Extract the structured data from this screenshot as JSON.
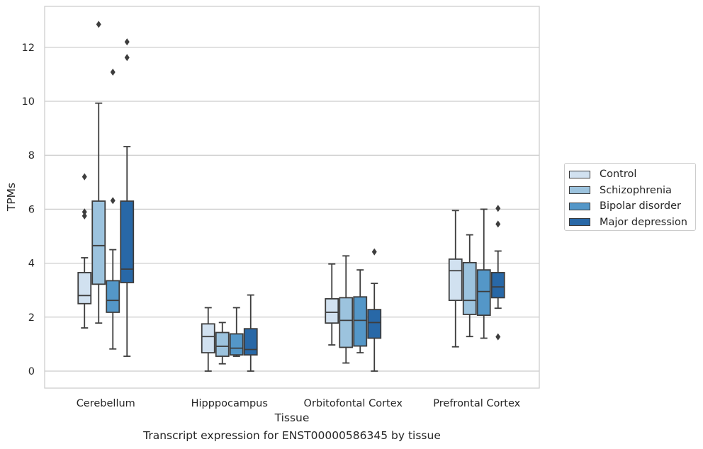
{
  "chart_data": {
    "type": "boxplot",
    "xlabel": "Tissue",
    "ylabel": "TPMs",
    "caption": "Transcript expression for ENST00000586345 by tissue",
    "ylim": [
      -0.6,
      13.5
    ],
    "yticks": [
      "0",
      "2",
      "4",
      "6",
      "8",
      "10",
      "12"
    ],
    "grid": "horizontal",
    "legend_position": "right",
    "categories": [
      "Cerebellum",
      "Hipppocampus",
      "Orbitofontal Cortex",
      "Prefrontal Cortex"
    ],
    "series": [
      {
        "name": "Control",
        "color": "#d1e1f0",
        "boxes": [
          {
            "whislo": 1.6,
            "q1": 2.5,
            "med": 2.8,
            "q3": 3.65,
            "whishi": 4.2,
            "fliers": [
              5.75,
              5.9,
              7.2
            ]
          },
          {
            "whislo": 0.0,
            "q1": 0.68,
            "med": 1.28,
            "q3": 1.75,
            "whishi": 2.35,
            "fliers": []
          },
          {
            "whislo": 0.97,
            "q1": 1.78,
            "med": 2.18,
            "q3": 2.68,
            "whishi": 3.97,
            "fliers": []
          },
          {
            "whislo": 0.9,
            "q1": 2.62,
            "med": 3.72,
            "q3": 4.15,
            "whishi": 5.95,
            "fliers": []
          }
        ]
      },
      {
        "name": "Schizophrenia",
        "color": "#9cc3de",
        "boxes": [
          {
            "whislo": 1.78,
            "q1": 3.22,
            "med": 4.65,
            "q3": 6.3,
            "whishi": 9.93,
            "fliers": [
              12.85
            ]
          },
          {
            "whislo": 0.27,
            "q1": 0.55,
            "med": 0.92,
            "q3": 1.43,
            "whishi": 1.8,
            "fliers": []
          },
          {
            "whislo": 0.3,
            "q1": 0.88,
            "med": 1.88,
            "q3": 2.72,
            "whishi": 4.27,
            "fliers": []
          },
          {
            "whislo": 1.28,
            "q1": 2.1,
            "med": 2.62,
            "q3": 4.02,
            "whishi": 5.05,
            "fliers": []
          }
        ]
      },
      {
        "name": "Bipolar disorder",
        "color": "#5497c8",
        "boxes": [
          {
            "whislo": 0.82,
            "q1": 2.18,
            "med": 2.62,
            "q3": 3.35,
            "whishi": 4.5,
            "fliers": [
              6.32,
              11.08
            ]
          },
          {
            "whislo": 0.55,
            "q1": 0.6,
            "med": 0.85,
            "q3": 1.38,
            "whishi": 2.35,
            "fliers": []
          },
          {
            "whislo": 0.68,
            "q1": 0.93,
            "med": 1.88,
            "q3": 2.75,
            "whishi": 3.75,
            "fliers": []
          },
          {
            "whislo": 1.22,
            "q1": 2.07,
            "med": 2.95,
            "q3": 3.75,
            "whishi": 6.0,
            "fliers": []
          }
        ]
      },
      {
        "name": "Major depression",
        "color": "#2868a7",
        "boxes": [
          {
            "whislo": 0.55,
            "q1": 3.28,
            "med": 3.78,
            "q3": 6.3,
            "whishi": 8.32,
            "fliers": [
              11.62,
              12.2
            ]
          },
          {
            "whislo": 0.0,
            "q1": 0.6,
            "med": 0.8,
            "q3": 1.57,
            "whishi": 2.82,
            "fliers": []
          },
          {
            "whislo": 0.0,
            "q1": 1.22,
            "med": 1.8,
            "q3": 2.28,
            "whishi": 3.25,
            "fliers": [
              4.42
            ]
          },
          {
            "whislo": 2.33,
            "q1": 2.72,
            "med": 3.12,
            "q3": 3.65,
            "whishi": 4.45,
            "fliers": [
              1.27,
              5.45,
              6.03
            ]
          }
        ]
      }
    ]
  }
}
